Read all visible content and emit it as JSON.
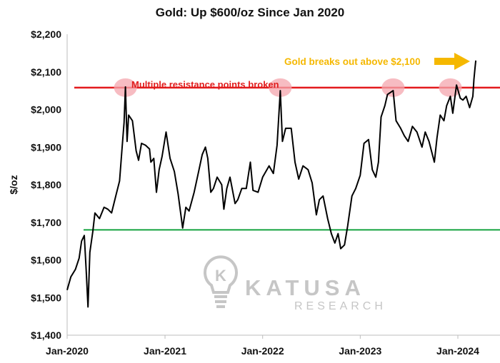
{
  "chart_data": {
    "type": "line",
    "title": "Gold: Up $600/oz Since Jan 2020",
    "ylabel": "$/oz",
    "xlabel": "",
    "ylim": [
      1400,
      2200
    ],
    "xlim": [
      "2020-01-01",
      "2024-03-31"
    ],
    "y_ticks": [
      1400,
      1500,
      1600,
      1700,
      1800,
      1900,
      2000,
      2100,
      2200
    ],
    "y_tick_labels": [
      "$1,400",
      "$1,500",
      "$1,600",
      "$1,700",
      "$1,800",
      "$1,900",
      "$2,000",
      "$2,100",
      "$2,200"
    ],
    "x_ticks": [
      "2020-01-01",
      "2021-01-01",
      "2022-01-01",
      "2023-01-01",
      "2024-01-01"
    ],
    "x_tick_labels": [
      "Jan-2020",
      "Jan-2021",
      "Jan-2022",
      "Jan-2023",
      "Jan-2024"
    ],
    "grid": false,
    "series": [
      {
        "color": "#000000",
        "x": [
          "2020-01-01",
          "2020-01-15",
          "2020-02-01",
          "2020-02-15",
          "2020-02-24",
          "2020-03-05",
          "2020-03-12",
          "2020-03-19",
          "2020-03-26",
          "2020-04-06",
          "2020-04-14",
          "2020-05-01",
          "2020-05-18",
          "2020-06-01",
          "2020-06-15",
          "2020-07-01",
          "2020-07-15",
          "2020-07-24",
          "2020-08-01",
          "2020-08-06",
          "2020-08-12",
          "2020-08-18",
          "2020-09-01",
          "2020-09-15",
          "2020-09-24",
          "2020-10-05",
          "2020-10-20",
          "2020-11-04",
          "2020-11-09",
          "2020-11-20",
          "2020-11-30",
          "2020-12-10",
          "2020-12-21",
          "2021-01-05",
          "2021-01-20",
          "2021-02-05",
          "2021-02-19",
          "2021-03-08",
          "2021-03-20",
          "2021-04-01",
          "2021-04-20",
          "2021-05-05",
          "2021-05-20",
          "2021-06-01",
          "2021-06-10",
          "2021-06-21",
          "2021-07-01",
          "2021-07-15",
          "2021-08-01",
          "2021-08-09",
          "2021-08-20",
          "2021-09-01",
          "2021-09-20",
          "2021-09-30",
          "2021-10-15",
          "2021-11-01",
          "2021-11-16",
          "2021-11-26",
          "2021-12-15",
          "2022-01-01",
          "2022-01-25",
          "2022-02-10",
          "2022-02-24",
          "2022-03-08",
          "2022-03-16",
          "2022-03-28",
          "2022-04-18",
          "2022-05-02",
          "2022-05-16",
          "2022-06-01",
          "2022-06-20",
          "2022-07-05",
          "2022-07-21",
          "2022-08-01",
          "2022-08-15",
          "2022-09-01",
          "2022-09-15",
          "2022-09-28",
          "2022-10-10",
          "2022-10-20",
          "2022-11-03",
          "2022-11-15",
          "2022-12-01",
          "2022-12-15",
          "2023-01-01",
          "2023-01-15",
          "2023-02-01",
          "2023-02-15",
          "2023-02-28",
          "2023-03-10",
          "2023-03-20",
          "2023-04-03",
          "2023-04-13",
          "2023-05-04",
          "2023-05-15",
          "2023-06-01",
          "2023-06-15",
          "2023-06-29",
          "2023-07-15",
          "2023-08-01",
          "2023-08-20",
          "2023-09-01",
          "2023-09-15",
          "2023-10-05",
          "2023-10-15",
          "2023-10-27",
          "2023-11-10",
          "2023-11-20",
          "2023-12-04",
          "2023-12-13",
          "2023-12-27",
          "2024-01-10",
          "2024-01-20",
          "2024-02-01",
          "2024-02-14",
          "2024-02-26",
          "2024-03-01",
          "2024-03-05",
          "2024-03-08"
        ],
        "y": [
          1520,
          1555,
          1575,
          1605,
          1650,
          1665,
          1575,
          1475,
          1620,
          1675,
          1725,
          1710,
          1740,
          1735,
          1725,
          1770,
          1810,
          1895,
          1965,
          2060,
          1915,
          1985,
          1970,
          1890,
          1865,
          1910,
          1905,
          1895,
          1860,
          1870,
          1780,
          1840,
          1875,
          1940,
          1870,
          1835,
          1775,
          1685,
          1740,
          1730,
          1780,
          1830,
          1880,
          1900,
          1870,
          1780,
          1790,
          1820,
          1800,
          1735,
          1790,
          1820,
          1750,
          1760,
          1790,
          1790,
          1860,
          1785,
          1780,
          1820,
          1850,
          1830,
          1905,
          2050,
          1915,
          1950,
          1950,
          1860,
          1815,
          1850,
          1840,
          1805,
          1720,
          1760,
          1770,
          1710,
          1670,
          1645,
          1670,
          1630,
          1640,
          1690,
          1770,
          1790,
          1825,
          1910,
          1920,
          1840,
          1820,
          1860,
          1980,
          2010,
          2040,
          2050,
          1970,
          1950,
          1930,
          1915,
          1955,
          1940,
          1900,
          1940,
          1915,
          1860,
          1925,
          1985,
          1970,
          2010,
          2035,
          1990,
          2065,
          2030,
          2025,
          2035,
          2005,
          2035,
          2080,
          2110,
          2130
        ]
      }
    ],
    "reference_lines": [
      {
        "y": 2058,
        "color": "#e31a1c"
      },
      {
        "y": 1680,
        "color": "#22a84a"
      }
    ],
    "highlights": [
      "2020-08-06",
      "2022-03-08",
      "2023-05-04",
      "2023-12-04"
    ],
    "highlight_color": "#f4a6ad",
    "annotations": [
      {
        "text": "Multiple resistance points broken",
        "color": "#e11d1d"
      },
      {
        "text": "Gold breaks out above $2,100",
        "color": "#f5b800"
      }
    ],
    "arrow_color": "#f5b800"
  },
  "watermark": {
    "name": "KATUSA",
    "subtitle": "RESEARCH",
    "icon": "lightbulb-k-icon",
    "icon_letter": "K"
  }
}
